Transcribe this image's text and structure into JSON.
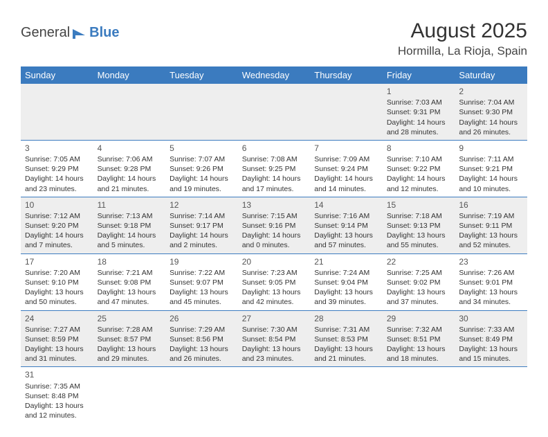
{
  "logo": {
    "text1": "General",
    "text2": "Blue"
  },
  "title": "August 2025",
  "location": "Hormilla, La Rioja, Spain",
  "style": {
    "header_bg": "#3b7bbf",
    "header_fg": "#ffffff",
    "row_alt_bg": "#eeeeee",
    "row_bg": "#ffffff",
    "border_color": "#3b7bbf",
    "body_font_size": 10.5,
    "title_font_size": 30,
    "location_font_size": 17,
    "dayhead_font_size": 13
  },
  "day_headers": [
    "Sunday",
    "Monday",
    "Tuesday",
    "Wednesday",
    "Thursday",
    "Friday",
    "Saturday"
  ],
  "weeks": [
    [
      null,
      null,
      null,
      null,
      null,
      {
        "n": "1",
        "sr": "7:03 AM",
        "ss": "9:31 PM",
        "dl": "14 hours and 28 minutes."
      },
      {
        "n": "2",
        "sr": "7:04 AM",
        "ss": "9:30 PM",
        "dl": "14 hours and 26 minutes."
      }
    ],
    [
      {
        "n": "3",
        "sr": "7:05 AM",
        "ss": "9:29 PM",
        "dl": "14 hours and 23 minutes."
      },
      {
        "n": "4",
        "sr": "7:06 AM",
        "ss": "9:28 PM",
        "dl": "14 hours and 21 minutes."
      },
      {
        "n": "5",
        "sr": "7:07 AM",
        "ss": "9:26 PM",
        "dl": "14 hours and 19 minutes."
      },
      {
        "n": "6",
        "sr": "7:08 AM",
        "ss": "9:25 PM",
        "dl": "14 hours and 17 minutes."
      },
      {
        "n": "7",
        "sr": "7:09 AM",
        "ss": "9:24 PM",
        "dl": "14 hours and 14 minutes."
      },
      {
        "n": "8",
        "sr": "7:10 AM",
        "ss": "9:22 PM",
        "dl": "14 hours and 12 minutes."
      },
      {
        "n": "9",
        "sr": "7:11 AM",
        "ss": "9:21 PM",
        "dl": "14 hours and 10 minutes."
      }
    ],
    [
      {
        "n": "10",
        "sr": "7:12 AM",
        "ss": "9:20 PM",
        "dl": "14 hours and 7 minutes."
      },
      {
        "n": "11",
        "sr": "7:13 AM",
        "ss": "9:18 PM",
        "dl": "14 hours and 5 minutes."
      },
      {
        "n": "12",
        "sr": "7:14 AM",
        "ss": "9:17 PM",
        "dl": "14 hours and 2 minutes."
      },
      {
        "n": "13",
        "sr": "7:15 AM",
        "ss": "9:16 PM",
        "dl": "14 hours and 0 minutes."
      },
      {
        "n": "14",
        "sr": "7:16 AM",
        "ss": "9:14 PM",
        "dl": "13 hours and 57 minutes."
      },
      {
        "n": "15",
        "sr": "7:18 AM",
        "ss": "9:13 PM",
        "dl": "13 hours and 55 minutes."
      },
      {
        "n": "16",
        "sr": "7:19 AM",
        "ss": "9:11 PM",
        "dl": "13 hours and 52 minutes."
      }
    ],
    [
      {
        "n": "17",
        "sr": "7:20 AM",
        "ss": "9:10 PM",
        "dl": "13 hours and 50 minutes."
      },
      {
        "n": "18",
        "sr": "7:21 AM",
        "ss": "9:08 PM",
        "dl": "13 hours and 47 minutes."
      },
      {
        "n": "19",
        "sr": "7:22 AM",
        "ss": "9:07 PM",
        "dl": "13 hours and 45 minutes."
      },
      {
        "n": "20",
        "sr": "7:23 AM",
        "ss": "9:05 PM",
        "dl": "13 hours and 42 minutes."
      },
      {
        "n": "21",
        "sr": "7:24 AM",
        "ss": "9:04 PM",
        "dl": "13 hours and 39 minutes."
      },
      {
        "n": "22",
        "sr": "7:25 AM",
        "ss": "9:02 PM",
        "dl": "13 hours and 37 minutes."
      },
      {
        "n": "23",
        "sr": "7:26 AM",
        "ss": "9:01 PM",
        "dl": "13 hours and 34 minutes."
      }
    ],
    [
      {
        "n": "24",
        "sr": "7:27 AM",
        "ss": "8:59 PM",
        "dl": "13 hours and 31 minutes."
      },
      {
        "n": "25",
        "sr": "7:28 AM",
        "ss": "8:57 PM",
        "dl": "13 hours and 29 minutes."
      },
      {
        "n": "26",
        "sr": "7:29 AM",
        "ss": "8:56 PM",
        "dl": "13 hours and 26 minutes."
      },
      {
        "n": "27",
        "sr": "7:30 AM",
        "ss": "8:54 PM",
        "dl": "13 hours and 23 minutes."
      },
      {
        "n": "28",
        "sr": "7:31 AM",
        "ss": "8:53 PM",
        "dl": "13 hours and 21 minutes."
      },
      {
        "n": "29",
        "sr": "7:32 AM",
        "ss": "8:51 PM",
        "dl": "13 hours and 18 minutes."
      },
      {
        "n": "30",
        "sr": "7:33 AM",
        "ss": "8:49 PM",
        "dl": "13 hours and 15 minutes."
      }
    ],
    [
      {
        "n": "31",
        "sr": "7:35 AM",
        "ss": "8:48 PM",
        "dl": "13 hours and 12 minutes."
      },
      null,
      null,
      null,
      null,
      null,
      null
    ]
  ],
  "labels": {
    "sunrise": "Sunrise:",
    "sunset": "Sunset:",
    "daylight": "Daylight:"
  }
}
